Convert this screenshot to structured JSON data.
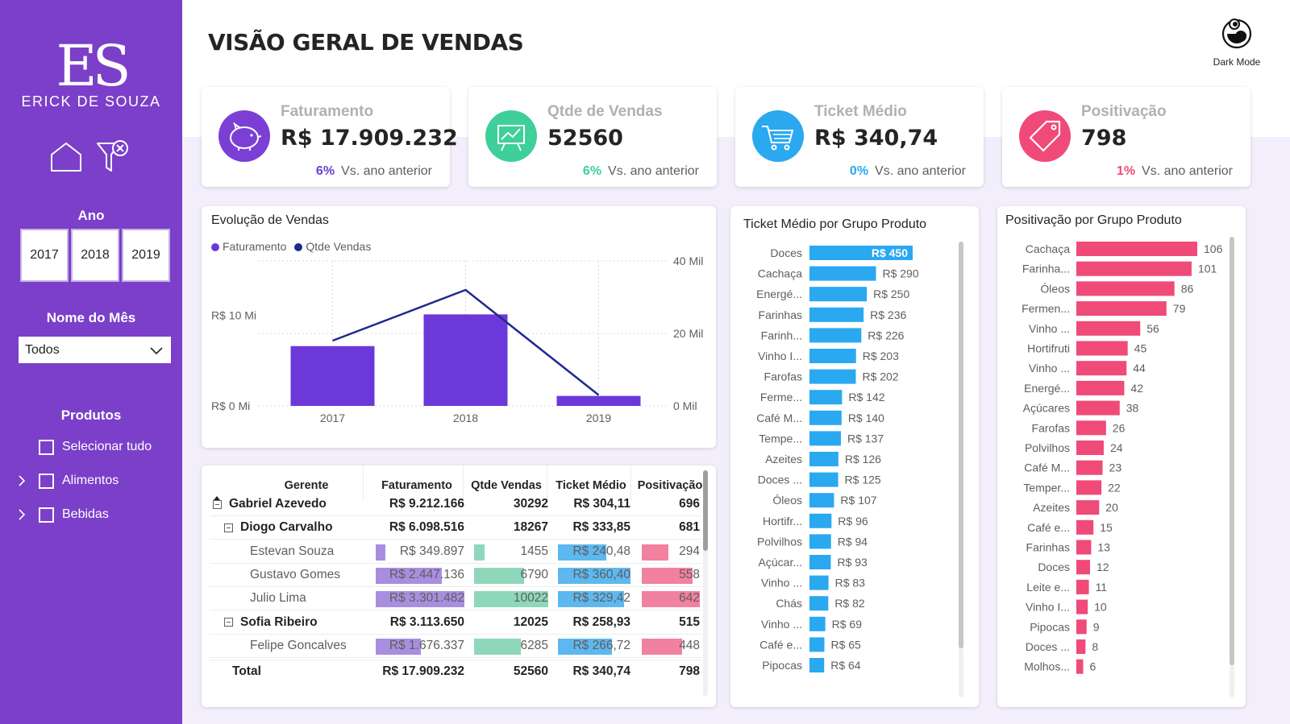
{
  "brand": {
    "logo_initials": "ES",
    "logo_name": "ERICK DE SOUZA"
  },
  "nav": {
    "home_icon": "home-icon",
    "clear_filters_icon": "clear-filter-icon"
  },
  "filters": {
    "year_label": "Ano",
    "years": [
      "2017",
      "2018",
      "2019"
    ],
    "month_label": "Nome do Mês",
    "month_selected": "Todos",
    "products_label": "Produtos",
    "products": [
      {
        "label": "Selecionar tudo",
        "expandable": false
      },
      {
        "label": "Alimentos",
        "expandable": true
      },
      {
        "label": "Bebidas",
        "expandable": true
      }
    ]
  },
  "header": {
    "title": "VISÃO GERAL DE VENDAS",
    "dark_mode_label": "Dark Mode"
  },
  "kpis": [
    {
      "title": "Faturamento",
      "value": "R$ 17.909.232",
      "pct": "6%",
      "sub": "Vs. ano anterior",
      "color": "#7b3fd6",
      "pct_color": "#6b3fd0",
      "icon": "piggy-bank-icon"
    },
    {
      "title": "Qtde de Vendas",
      "value": "52560",
      "pct": "6%",
      "sub": "Vs. ano anterior",
      "color": "#3fcf9a",
      "pct_color": "#3fcf9a",
      "icon": "presentation-chart-icon"
    },
    {
      "title": "Ticket Médio",
      "value": "R$ 340,74",
      "pct": "0%",
      "sub": "Vs. ano anterior",
      "color": "#2aa8f0",
      "pct_color": "#2aa8f0",
      "icon": "shopping-cart-icon"
    },
    {
      "title": "Positivação",
      "value": "798",
      "pct": "1%",
      "sub": "Vs. ano anterior",
      "color": "#f04a78",
      "pct_color": "#f04a78",
      "icon": "price-tag-icon"
    }
  ],
  "evolution": {
    "title": "Evolução de Vendas",
    "legend": [
      "Faturamento",
      "Qtde Vendas"
    ],
    "colors": {
      "bar": "#6c38d9",
      "line": "#1e2a8c"
    }
  },
  "chart_data": [
    {
      "type": "bar",
      "title": "Evolução de Vendas",
      "categories": [
        "2017",
        "2018",
        "2019"
      ],
      "series": [
        {
          "name": "Faturamento",
          "type": "bar",
          "axis": "left",
          "values": [
            6600000,
            10100000,
            1100000
          ]
        },
        {
          "name": "Qtde Vendas",
          "type": "line",
          "axis": "right",
          "values": [
            18000,
            32000,
            3000
          ]
        }
      ],
      "y_left": {
        "ticks": [
          "R$ 0 Mi",
          "R$ 10 Mi"
        ],
        "tick_values": [
          0,
          10000000
        ],
        "range": [
          0,
          16000000
        ]
      },
      "y_right": {
        "ticks": [
          "0 Mil",
          "20 Mil",
          "40 Mil"
        ],
        "tick_values": [
          0,
          20000,
          40000
        ],
        "range": [
          0,
          40000
        ]
      },
      "legend_position": "top-left"
    },
    {
      "type": "bar",
      "orientation": "horizontal",
      "title": "Ticket Médio por Grupo Produto",
      "color": "#2aa8f0",
      "categories": [
        "Doces",
        "Cachaça",
        "Energé...",
        "Farinhas",
        "Farinh...",
        "Vinho I...",
        "Farofas",
        "Ferme...",
        "Café M...",
        "Tempe...",
        "Azeites",
        "Doces ...",
        "Óleos",
        "Hortifr...",
        "Polvilhos",
        "Açúcar...",
        "Vinho ...",
        "Chás",
        "Vinho ...",
        "Café e...",
        "Pipocas"
      ],
      "values": [
        450,
        290,
        250,
        236,
        226,
        203,
        202,
        142,
        140,
        137,
        126,
        125,
        107,
        96,
        94,
        93,
        83,
        82,
        69,
        65,
        64
      ],
      "labels": [
        "R$ 450",
        "R$ 290",
        "R$ 250",
        "R$ 236",
        "R$ 226",
        "R$ 203",
        "R$ 202",
        "R$ 142",
        "R$ 140",
        "R$ 137",
        "R$ 126",
        "R$ 125",
        "R$ 107",
        "R$ 96",
        "R$ 94",
        "R$ 93",
        "R$ 83",
        "R$ 82",
        "R$ 69",
        "R$ 65",
        "R$ 64"
      ]
    },
    {
      "type": "bar",
      "orientation": "horizontal",
      "title": "Positivação por Grupo Produto",
      "color": "#f04a78",
      "categories": [
        "Cachaça",
        "Farinha...",
        "Óleos",
        "Fermen...",
        "Vinho ...",
        "Hortifruti",
        "Vinho ...",
        "Energé...",
        "Açúcares",
        "Farofas",
        "Polvilhos",
        "Café M...",
        "Temper...",
        "Azeites",
        "Café e...",
        "Farinhas",
        "Doces",
        "Leite e...",
        "Vinho I...",
        "Pipocas",
        "Doces ...",
        "Molhos..."
      ],
      "values": [
        106,
        101,
        86,
        79,
        56,
        45,
        44,
        42,
        38,
        26,
        24,
        23,
        22,
        20,
        15,
        13,
        12,
        11,
        10,
        9,
        8,
        6
      ]
    }
  ],
  "matrix": {
    "headers": [
      "Gerente",
      "Faturamento",
      "Qtde Vendas",
      "Ticket Médio",
      "Positivação"
    ],
    "bar_colors": {
      "faturamento": "#a98ee0",
      "qtde": "#8fd7bb",
      "ticket": "#5db8f0",
      "positivacao": "#f2819f"
    },
    "rows": [
      {
        "level": 0,
        "name": "Gabriel Azevedo",
        "bold": true,
        "collapse": true,
        "fat": "R$ 9.212.166",
        "qtd": "30292",
        "tkt": "R$ 304,11",
        "pos": "696"
      },
      {
        "level": 1,
        "name": "Diogo Carvalho",
        "bold": true,
        "collapse": true,
        "fat": "R$ 6.098.516",
        "qtd": "18267",
        "tkt": "R$ 333,85",
        "pos": "681"
      },
      {
        "level": 2,
        "name": "Estevan Souza",
        "bold": false,
        "collapse": false,
        "fat": "R$ 349.897",
        "qtd": "1455",
        "tkt": "R$ 240,48",
        "pos": "294",
        "fat_v": 349897,
        "qtd_v": 1455,
        "tkt_v": 240.48,
        "pos_v": 294
      },
      {
        "level": 2,
        "name": "Gustavo Gomes",
        "bold": false,
        "collapse": false,
        "fat": "R$ 2.447.136",
        "qtd": "6790",
        "tkt": "R$ 360,40",
        "pos": "558",
        "fat_v": 2447136,
        "qtd_v": 6790,
        "tkt_v": 360.4,
        "pos_v": 558
      },
      {
        "level": 2,
        "name": "Julio Lima",
        "bold": false,
        "collapse": false,
        "fat": "R$ 3.301.482",
        "qtd": "10022",
        "tkt": "R$ 329,42",
        "pos": "642",
        "fat_v": 3301482,
        "qtd_v": 10022,
        "tkt_v": 329.42,
        "pos_v": 642
      },
      {
        "level": 1,
        "name": "Sofia Ribeiro",
        "bold": true,
        "collapse": true,
        "fat": "R$ 3.113.650",
        "qtd": "12025",
        "tkt": "R$ 258,93",
        "pos": "515"
      },
      {
        "level": 2,
        "name": "Felipe Goncalves",
        "bold": false,
        "collapse": false,
        "fat": "R$ 1.676.337",
        "qtd": "6285",
        "tkt": "R$ 266,72",
        "pos": "448",
        "fat_v": 1676337,
        "qtd_v": 6285,
        "tkt_v": 266.72,
        "pos_v": 448
      }
    ],
    "total": {
      "name": "Total",
      "fat": "R$ 17.909.232",
      "qtd": "52560",
      "tkt": "R$ 340,74",
      "pos": "798"
    }
  }
}
